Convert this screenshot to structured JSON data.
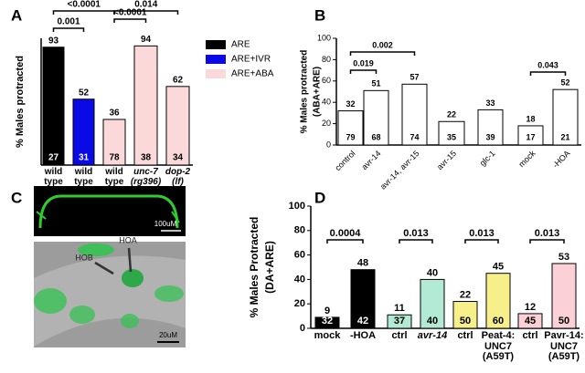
{
  "panel_labels": [
    "A",
    "B",
    "C",
    "D"
  ],
  "micrograph": {
    "top_scale": "100uM",
    "bottom_scale": "20uM",
    "labels": [
      "HOB",
      "HOA"
    ]
  },
  "chart_data": [
    {
      "type": "bar",
      "ylabel": [
        "% Males protracted"
      ],
      "ylim": [
        0,
        100
      ],
      "categories": [
        "wild type",
        "wild type",
        "wild type",
        "unc-7 (rg396)",
        "dop-2 (lf)"
      ],
      "values": [
        93,
        52,
        36,
        94,
        62
      ],
      "n": [
        27,
        31,
        78,
        38,
        34
      ],
      "colors": [
        "#000000",
        "#0a0ae6",
        "#fbd9da",
        "#fbd9da",
        "#fbd9da"
      ],
      "legend": [
        {
          "name": "ARE",
          "color": "#000000"
        },
        {
          "name": "ARE+IVR",
          "color": "#0a0ae6"
        },
        {
          "name": "ARE+ABA",
          "color": "#fbd9da"
        }
      ],
      "comparisons": [
        "<0.0001",
        "0.001",
        "<0.0001",
        "0.014"
      ]
    },
    {
      "type": "bar",
      "ylabel": [
        "% Males protracted",
        "(ABA+ARE)"
      ],
      "ylim": [
        0,
        100
      ],
      "yticks": [
        0,
        20,
        40,
        60,
        80,
        100
      ],
      "categories": [
        "control",
        "avr-14",
        "avr-14, avr-15",
        "avr-15",
        "glc-1",
        "mock",
        "-HOA"
      ],
      "values": [
        32,
        51,
        57,
        22,
        33,
        18,
        52
      ],
      "n": [
        79,
        68,
        74,
        35,
        39,
        17,
        21
      ],
      "colors": [
        "#ffffff",
        "#ffffff",
        "#ffffff",
        "#ffffff",
        "#ffffff",
        "#ffffff",
        "#ffffff"
      ],
      "comparisons": [
        "0.002",
        "0.019",
        "0.043"
      ]
    },
    {
      "type": "bar",
      "ylabel": [
        "% Males Protracted",
        "(DA+ARE)"
      ],
      "ylim": [
        0,
        100
      ],
      "yticks": [
        0,
        20,
        40,
        60,
        80,
        100
      ],
      "categories": [
        "mock",
        "-HOA",
        "ctrl",
        "avr-14",
        "ctrl",
        "Peat-4: UNC7 (A59T)",
        "ctrl",
        "Pavr-14: UNC7 (A59T)"
      ],
      "values": [
        9,
        48,
        11,
        40,
        22,
        45,
        12,
        53
      ],
      "n": [
        32,
        42,
        37,
        40,
        50,
        60,
        45,
        50
      ],
      "colors": [
        "#000000",
        "#000000",
        "#b3ead6",
        "#b3ead6",
        "#f7f08a",
        "#f7f08a",
        "#fbd0d6",
        "#fbd0d6"
      ],
      "comparisons": [
        "0.0004",
        "0.013",
        "0.013",
        "0.013"
      ]
    }
  ]
}
